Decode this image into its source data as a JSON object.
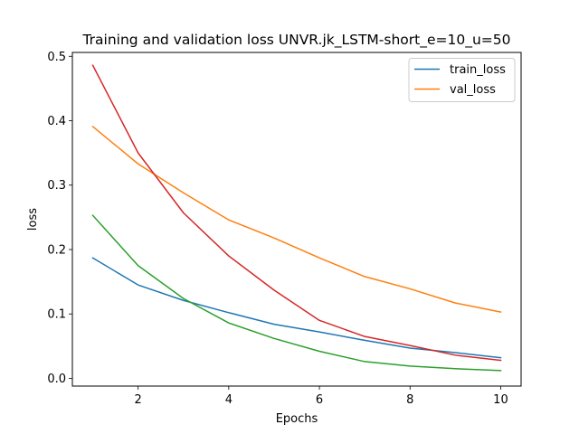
{
  "chart_data": {
    "type": "line",
    "title": "Training and validation loss UNVR.jk_LSTM-short_e=10_u=50",
    "xlabel": "Epochs",
    "ylabel": "loss",
    "x": [
      1,
      2,
      3,
      4,
      5,
      6,
      7,
      8,
      9,
      10
    ],
    "xlim": [
      0.55,
      10.45
    ],
    "ylim": [
      -0.012,
      0.506
    ],
    "xticks": [
      2,
      4,
      6,
      8,
      10
    ],
    "yticks": [
      0.0,
      0.1,
      0.2,
      0.3,
      0.4,
      0.5
    ],
    "grid": false,
    "legend_position": "top-right",
    "series": [
      {
        "name": "train_loss",
        "color": "#1f77b4",
        "in_legend": true,
        "values": [
          0.187,
          0.145,
          0.121,
          0.102,
          0.084,
          0.072,
          0.059,
          0.047,
          0.04,
          0.032
        ]
      },
      {
        "name": "val_loss",
        "color": "#ff7f0e",
        "in_legend": true,
        "values": [
          0.391,
          0.333,
          0.288,
          0.246,
          0.218,
          0.187,
          0.158,
          0.139,
          0.117,
          0.103
        ]
      },
      {
        "color": "#2ca02c",
        "in_legend": false,
        "values": [
          0.253,
          0.175,
          0.124,
          0.086,
          0.062,
          0.042,
          0.026,
          0.019,
          0.015,
          0.012
        ]
      },
      {
        "color": "#d62728",
        "in_legend": false,
        "values": [
          0.486,
          0.35,
          0.257,
          0.19,
          0.137,
          0.09,
          0.065,
          0.051,
          0.036,
          0.028
        ]
      }
    ]
  }
}
